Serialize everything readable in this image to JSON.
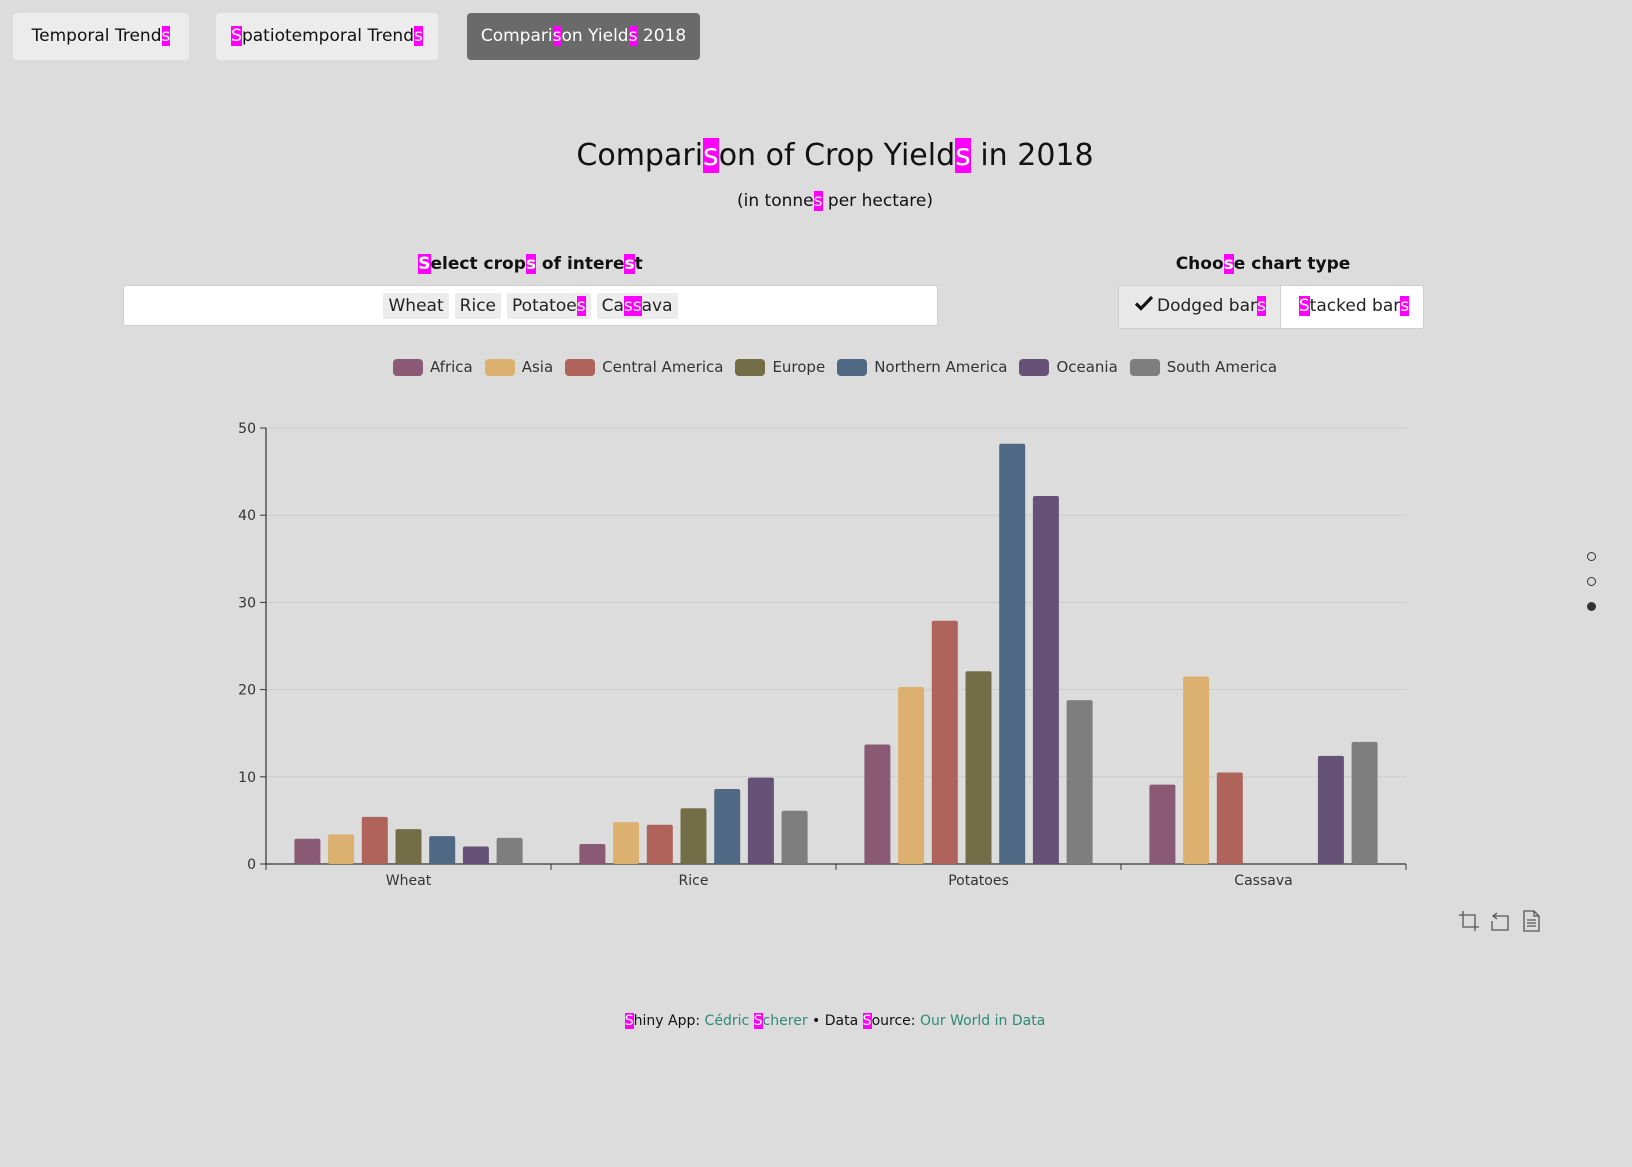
{
  "tabs": [
    {
      "label": "Temporal Trends",
      "active": false
    },
    {
      "label": "Spatiotemporal Trends",
      "active": false
    },
    {
      "label": "Comparison Yields 2018",
      "active": true
    }
  ],
  "title": "Comparison of Crop Yields in 2018",
  "subtitle": "(in tonnes per hectare)",
  "crop_select": {
    "label": "Select crops of interest",
    "selected": [
      "Wheat",
      "Rice",
      "Potatoes",
      "Cassava"
    ]
  },
  "chart_type": {
    "label": "Choose chart type",
    "options": [
      {
        "label": "Dodged bars",
        "selected": true,
        "icon": "checkmark-icon"
      },
      {
        "label": "Stacked bars",
        "selected": false
      }
    ]
  },
  "chart_data": {
    "type": "bar",
    "categories": [
      "Wheat",
      "Rice",
      "Potatoes",
      "Cassava"
    ],
    "ylim": [
      0,
      50
    ],
    "yticks": [
      0,
      10,
      20,
      30,
      40,
      50
    ],
    "grid": true,
    "legend_position": "top",
    "series": [
      {
        "name": "Africa",
        "color": "#8a5a74",
        "values": [
          2.9,
          2.3,
          13.7,
          9.1
        ]
      },
      {
        "name": "Asia",
        "color": "#dcb06e",
        "values": [
          3.4,
          4.8,
          20.3,
          21.5
        ]
      },
      {
        "name": "Central America",
        "color": "#b0635a",
        "values": [
          5.4,
          4.5,
          27.9,
          10.5
        ]
      },
      {
        "name": "Europe",
        "color": "#746e48",
        "values": [
          4.0,
          6.4,
          22.1,
          null
        ]
      },
      {
        "name": "Northern America",
        "color": "#4f6985",
        "values": [
          3.2,
          8.6,
          48.2,
          null
        ]
      },
      {
        "name": "Oceania",
        "color": "#665277",
        "values": [
          2.0,
          9.9,
          42.2,
          12.4
        ]
      },
      {
        "name": "South America",
        "color": "#7e7e7e",
        "values": [
          3.0,
          6.1,
          18.8,
          14.0
        ]
      }
    ]
  },
  "page_dots": [
    "page-1",
    "page-2",
    "page-3"
  ],
  "active_page": 2,
  "toolbox": [
    "zoom-icon",
    "reset-zoom-icon",
    "data-view-icon"
  ],
  "footer": {
    "app_label": "Shiny App:",
    "author": "Cédric Scherer",
    "separator": "•",
    "source_label": "Data Source:",
    "source": "Our World in Data"
  }
}
